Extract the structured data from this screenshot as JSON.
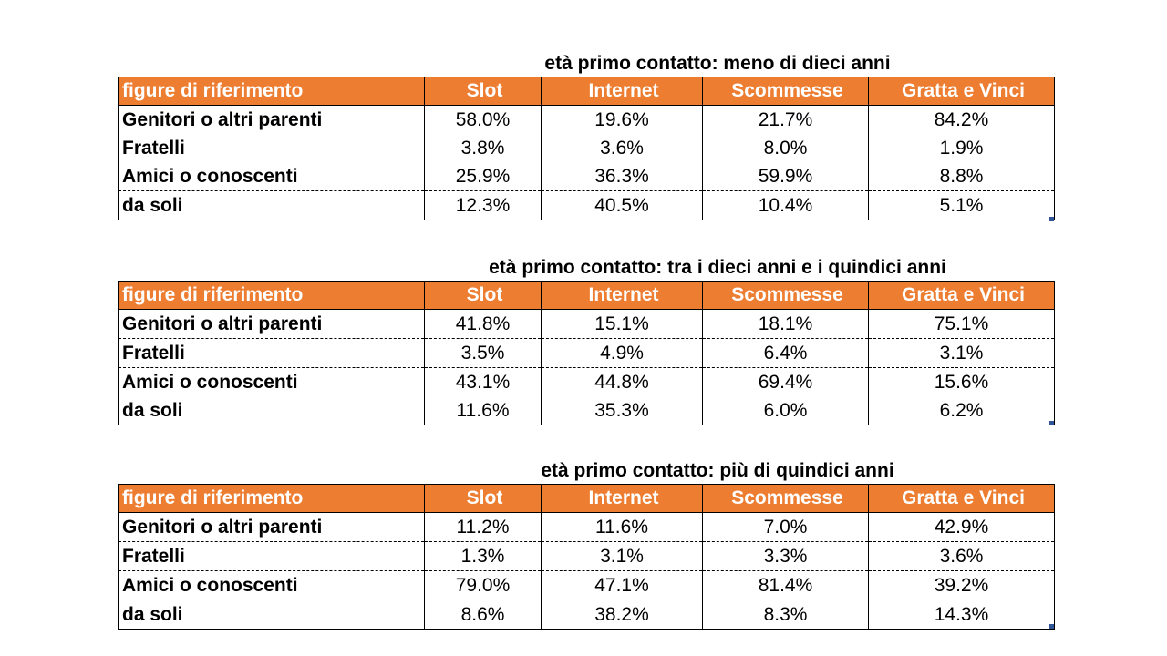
{
  "tables": [
    {
      "caption": "età primo contatto: meno di dieci anni",
      "header": [
        "figure di riferimento",
        "Slot",
        "Internet",
        "Scommesse",
        "Gratta e Vinci"
      ],
      "rows": [
        [
          "Genitori o altri parenti",
          "58.0%",
          "19.6%",
          "21.7%",
          "84.2%"
        ],
        [
          "Fratelli",
          "3.8%",
          "3.6%",
          "8.0%",
          "1.9%"
        ],
        [
          "Amici o conoscenti",
          "25.9%",
          "36.3%",
          "59.9%",
          "8.8%"
        ],
        [
          "da soli",
          "12.3%",
          "40.5%",
          "10.4%",
          "5.1%"
        ]
      ]
    },
    {
      "caption": "età primo contatto: tra i dieci anni e i quindici anni",
      "header": [
        "figure di riferimento",
        "Slot",
        "Internet",
        "Scommesse",
        "Gratta e Vinci"
      ],
      "rows": [
        [
          "Genitori o altri parenti",
          "41.8%",
          "15.1%",
          "18.1%",
          "75.1%"
        ],
        [
          "Fratelli",
          "3.5%",
          "4.9%",
          "6.4%",
          "3.1%"
        ],
        [
          "Amici o conoscenti",
          "43.1%",
          "44.8%",
          "69.4%",
          "15.6%"
        ],
        [
          "da soli",
          "11.6%",
          "35.3%",
          "6.0%",
          "6.2%"
        ]
      ]
    },
    {
      "caption": "età primo contatto: più di quindici anni",
      "header": [
        "figure di riferimento",
        "Slot",
        "Internet",
        "Scommesse",
        "Gratta e Vinci"
      ],
      "rows": [
        [
          "Genitori o altri parenti",
          "11.2%",
          "11.6%",
          "7.0%",
          "42.9%"
        ],
        [
          "Fratelli",
          "1.3%",
          "3.1%",
          "3.3%",
          "3.6%"
        ],
        [
          "Amici o conoscenti",
          "79.0%",
          "47.1%",
          "81.4%",
          "39.2%"
        ],
        [
          "da soli",
          "8.6%",
          "38.2%",
          "8.3%",
          "14.3%"
        ]
      ]
    }
  ],
  "colors": {
    "header_bg": "#ED7D31",
    "header_text": "#FFFFFF",
    "corner_marker": "#2F5597"
  }
}
